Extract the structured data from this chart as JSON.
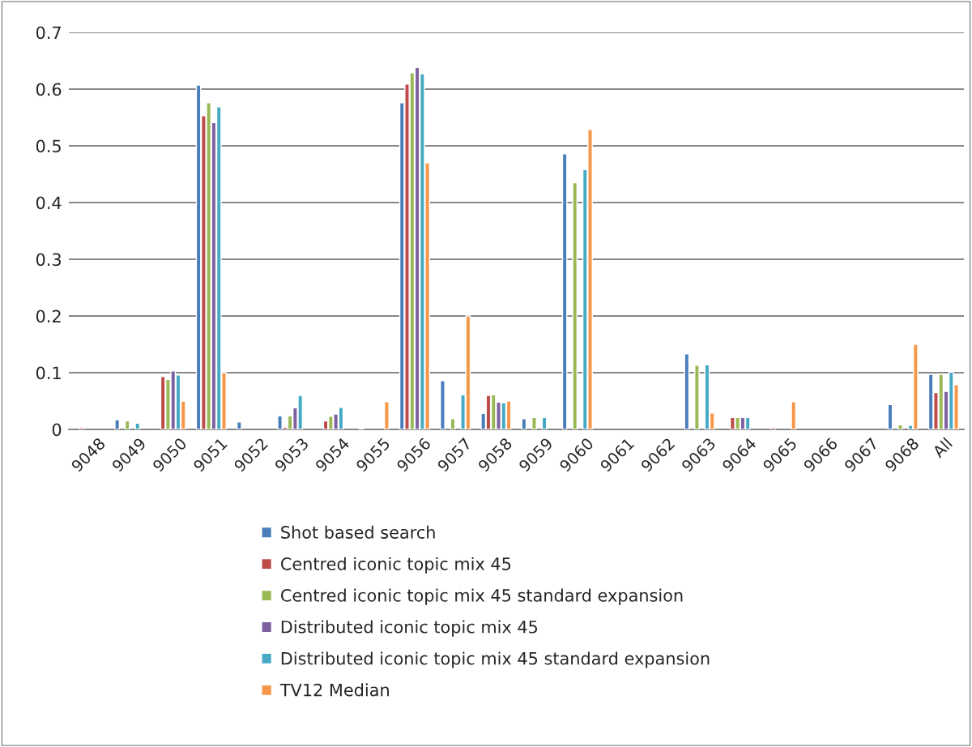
{
  "chart_data": {
    "type": "bar",
    "categories": [
      "9048",
      "9049",
      "9050",
      "9051",
      "9052",
      "9053",
      "9054",
      "9055",
      "9056",
      "9057",
      "9058",
      "9059",
      "9060",
      "9061",
      "9062",
      "9063",
      "9064",
      "9065",
      "9066",
      "9067",
      "9068",
      "All"
    ],
    "series": [
      {
        "name": "Shot based search",
        "color": "#4a7ebb",
        "values": [
          null,
          0.017,
          null,
          0.607,
          0.013,
          0.024,
          null,
          0.002,
          0.576,
          0.086,
          0.028,
          0.019,
          0.486,
          null,
          null,
          0.133,
          null,
          null,
          null,
          null,
          0.044,
          0.097
        ]
      },
      {
        "name": "Centred iconic topic mix 45",
        "color": "#be4b48",
        "values": [
          0.003,
          null,
          0.093,
          0.553,
          null,
          0.004,
          0.015,
          null,
          0.609,
          null,
          0.06,
          null,
          null,
          null,
          null,
          null,
          0.021,
          0.003,
          null,
          null,
          null,
          0.065
        ]
      },
      {
        "name": "Centred iconic topic mix 45 standard expansion",
        "color": "#98b954",
        "values": [
          null,
          0.015,
          0.088,
          0.576,
          null,
          0.024,
          0.023,
          null,
          0.629,
          0.019,
          0.061,
          0.021,
          0.435,
          null,
          null,
          0.113,
          0.021,
          null,
          null,
          null,
          0.008,
          0.097
        ]
      },
      {
        "name": "Distributed iconic topic mix 45",
        "color": "#7d60a0",
        "values": [
          null,
          null,
          0.103,
          0.541,
          null,
          0.038,
          0.027,
          null,
          0.638,
          null,
          0.048,
          null,
          null,
          null,
          null,
          null,
          0.021,
          null,
          null,
          null,
          null,
          0.067
        ]
      },
      {
        "name": "Distributed iconic topic mix 45 standard expansion",
        "color": "#46aac5",
        "values": [
          null,
          0.011,
          0.096,
          0.569,
          null,
          0.06,
          0.039,
          null,
          0.627,
          0.061,
          0.047,
          0.021,
          0.458,
          null,
          null,
          0.114,
          0.021,
          null,
          null,
          null,
          0.007,
          0.101
        ]
      },
      {
        "name": "TV12 Median",
        "color": "#f79646",
        "values": [
          null,
          null,
          0.05,
          0.1,
          null,
          null,
          null,
          0.049,
          0.47,
          0.2,
          0.05,
          null,
          0.529,
          null,
          null,
          0.029,
          null,
          0.049,
          null,
          null,
          0.15,
          0.079
        ]
      }
    ],
    "ylim": [
      0,
      0.7
    ],
    "yticks": [
      {
        "value": 0,
        "label": "0"
      },
      0.1,
      0.2,
      0.3,
      0.4,
      0.5,
      0.6,
      0.7
    ],
    "grid": "y",
    "legend": "bottom"
  }
}
